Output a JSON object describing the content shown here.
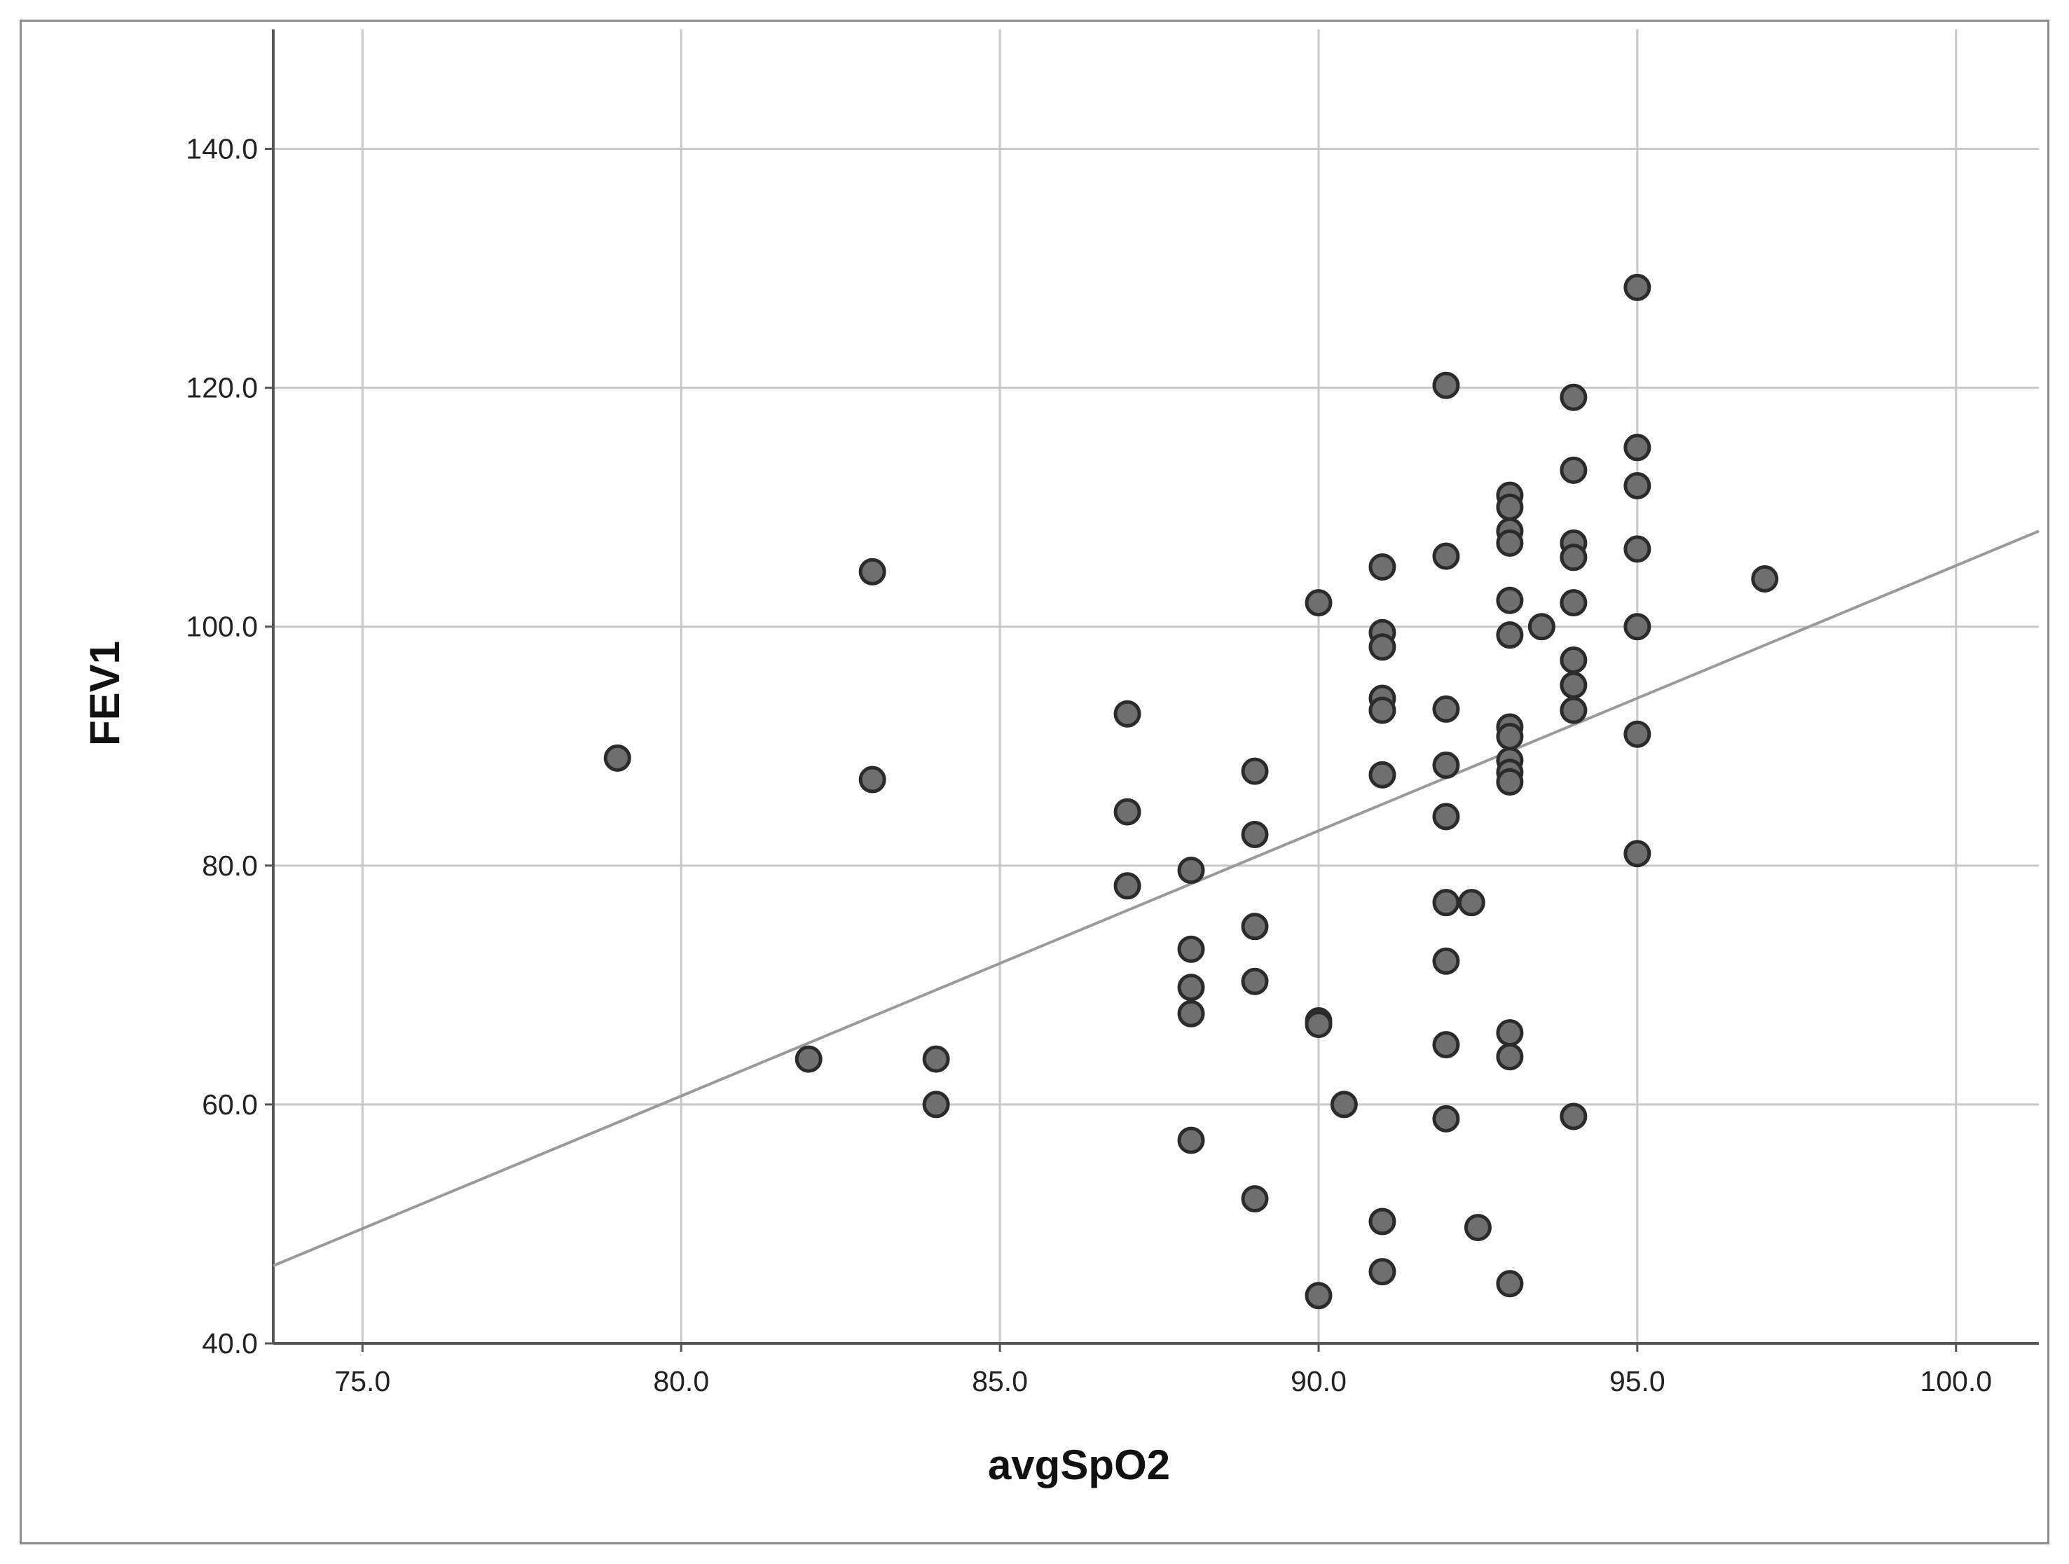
{
  "chart_data": {
    "type": "scatter",
    "xlabel": "avgSpO2",
    "ylabel": "FEV1",
    "xlim": [
      73.6,
      101.3
    ],
    "ylim": [
      40,
      150
    ],
    "x_ticks": [
      "75.0",
      "80.0",
      "85.0",
      "90.0",
      "95.0",
      "100.0"
    ],
    "y_ticks": [
      "40.0",
      "60.0",
      "80.0",
      "100.0",
      "120.0",
      "140.0"
    ],
    "grid": true,
    "legend": "none",
    "colors": {
      "point_fill": "#6f6f6f",
      "point_stroke": "#2b2b2b",
      "grid": "#c8c8c8",
      "axis": "#555555",
      "fit_line": "#9a9a9a"
    },
    "series": [
      {
        "points": [
          [
            79,
            89
          ],
          [
            82,
            63.8
          ],
          [
            83,
            104.6
          ],
          [
            83,
            87.2
          ],
          [
            84,
            63.8
          ],
          [
            84,
            60
          ],
          [
            87,
            92.7
          ],
          [
            87,
            84.5
          ],
          [
            87,
            78.3
          ],
          [
            88,
            79.6
          ],
          [
            88,
            73
          ],
          [
            88,
            69.8
          ],
          [
            88,
            67.6
          ],
          [
            88,
            57
          ],
          [
            89,
            87.9
          ],
          [
            89,
            82.6
          ],
          [
            89,
            74.9
          ],
          [
            89,
            70.3
          ],
          [
            89,
            52.1
          ],
          [
            90,
            102
          ],
          [
            90,
            67
          ],
          [
            90,
            66.7
          ],
          [
            90,
            44
          ],
          [
            90.4,
            60
          ],
          [
            91,
            105
          ],
          [
            91,
            99.5
          ],
          [
            91,
            98.3
          ],
          [
            91,
            94
          ],
          [
            91,
            93
          ],
          [
            91,
            87.6
          ],
          [
            91,
            50.2
          ],
          [
            91,
            46
          ],
          [
            92,
            120.2
          ],
          [
            92,
            105.9
          ],
          [
            92,
            93.1
          ],
          [
            92,
            88.4
          ],
          [
            92,
            84.1
          ],
          [
            92,
            76.9
          ],
          [
            92,
            72
          ],
          [
            92,
            65
          ],
          [
            92,
            58.8
          ],
          [
            92.4,
            76.9
          ],
          [
            92.5,
            49.7
          ],
          [
            93,
            111
          ],
          [
            93,
            110
          ],
          [
            93,
            108
          ],
          [
            93,
            107
          ],
          [
            93,
            102.2
          ],
          [
            93,
            99.3
          ],
          [
            93,
            91.6
          ],
          [
            93,
            90.8
          ],
          [
            93,
            88.8
          ],
          [
            93,
            87.8
          ],
          [
            93,
            87
          ],
          [
            93,
            66
          ],
          [
            93,
            64
          ],
          [
            93,
            45
          ],
          [
            93.5,
            100
          ],
          [
            94,
            119.2
          ],
          [
            94,
            113.1
          ],
          [
            94,
            107
          ],
          [
            94,
            105.8
          ],
          [
            94,
            102
          ],
          [
            94,
            97.2
          ],
          [
            94,
            95.1
          ],
          [
            94,
            93
          ],
          [
            94,
            59
          ],
          [
            95,
            128.4
          ],
          [
            95,
            115
          ],
          [
            95,
            111.8
          ],
          [
            95,
            106.5
          ],
          [
            95,
            100
          ],
          [
            95,
            91
          ],
          [
            95,
            81
          ],
          [
            97,
            104
          ]
        ]
      }
    ],
    "fit_line": {
      "x": [
        73.6,
        101.3
      ],
      "y": [
        46.5,
        108
      ]
    }
  }
}
